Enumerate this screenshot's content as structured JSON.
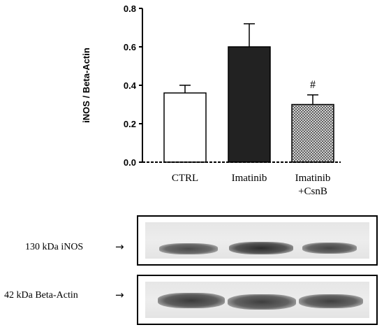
{
  "chart_data": {
    "type": "bar",
    "categories": [
      "CTRL",
      "Imatinib",
      "Imatinib\n+CsnB"
    ],
    "values": [
      0.36,
      0.6,
      0.3
    ],
    "errors": [
      0.04,
      0.12,
      0.05
    ],
    "fills": [
      "white",
      "#222222",
      "hatch"
    ],
    "ylabel": "iNOS / Beta-Actin",
    "ylim": [
      0.0,
      0.8
    ],
    "yticks": [
      "0.0",
      "0.2",
      "0.4",
      "0.6",
      "0.8"
    ],
    "annotations": [
      {
        "category": "Imatinib\n+CsnB",
        "text": "#"
      }
    ],
    "grid": false
  },
  "blots": [
    {
      "label": "130 kDa iNOS",
      "arrow": "→"
    },
    {
      "label": "42 kDa Beta-Actin",
      "arrow": "→"
    }
  ]
}
